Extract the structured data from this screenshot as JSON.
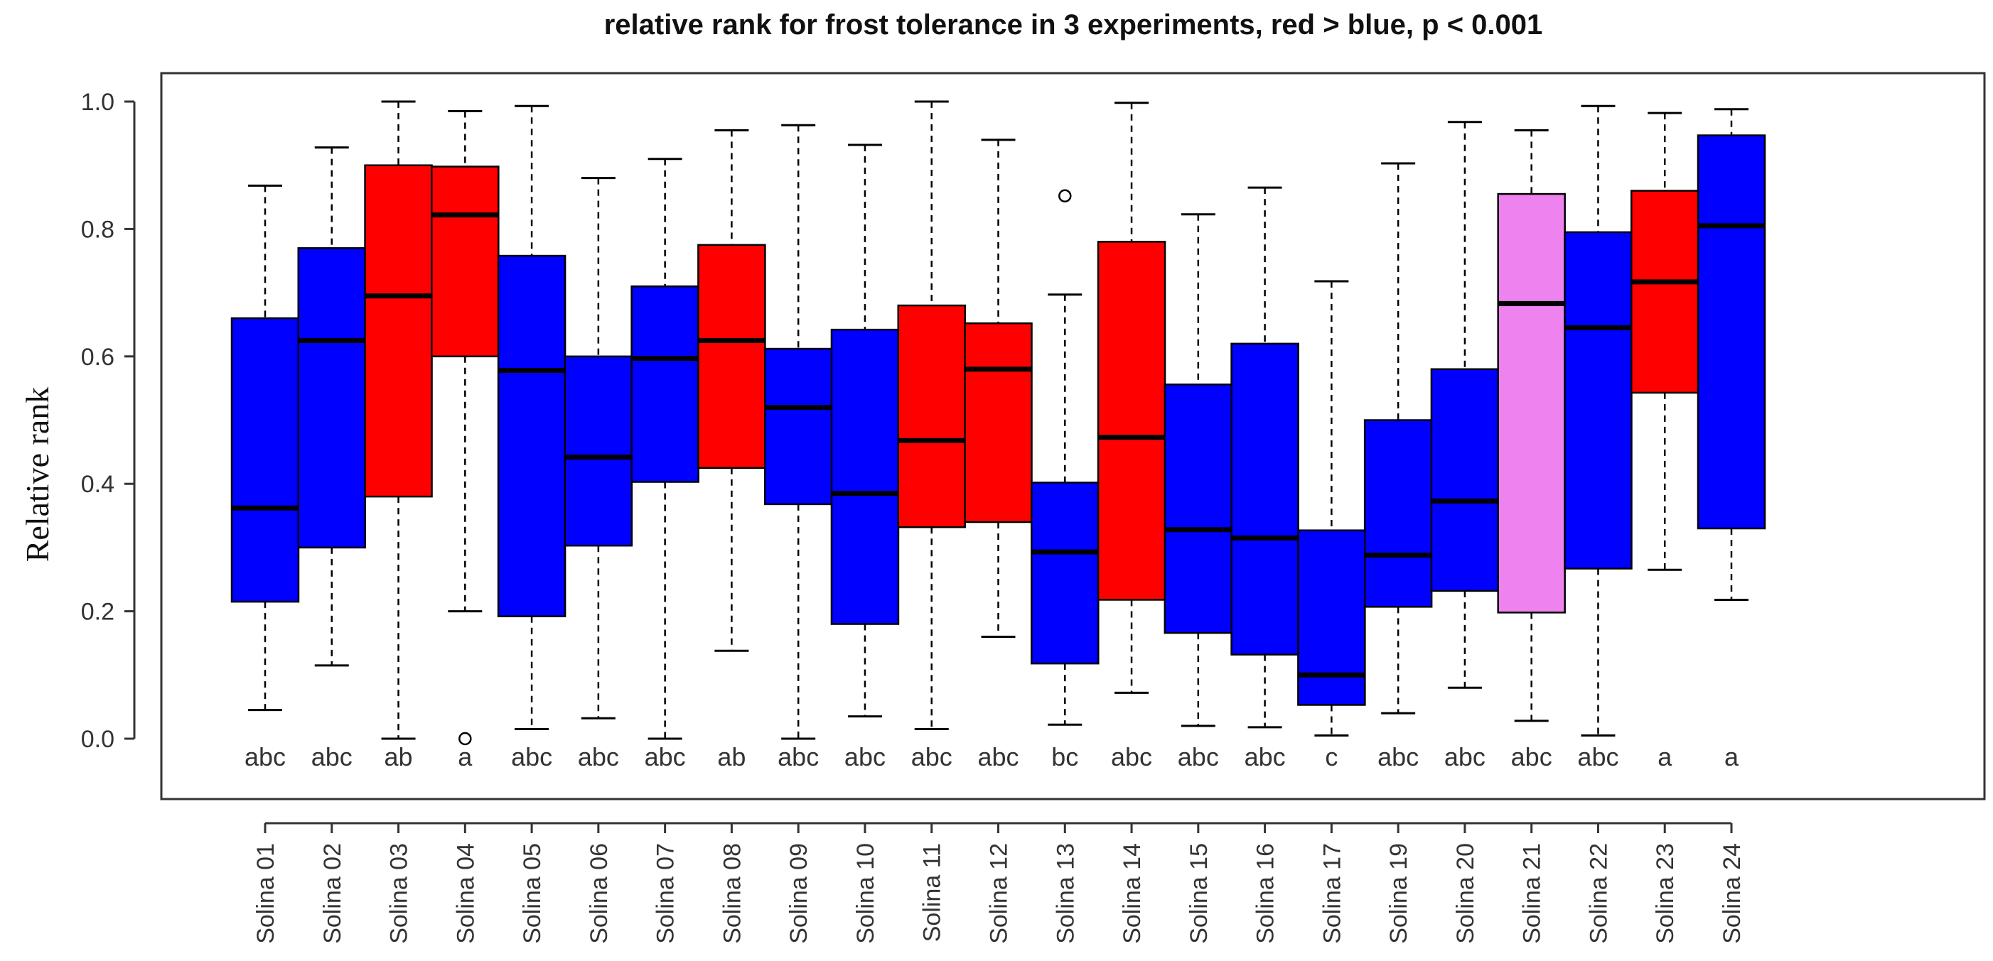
{
  "chart_data": {
    "type": "boxplot",
    "title": "relative rank for frost tolerance in 3 experiments, red > blue, p < 0.001",
    "xlabel": "",
    "ylabel": "Relative rank",
    "ylim": [
      -0.1,
      1.03
    ],
    "yticks": [
      0.0,
      0.2,
      0.4,
      0.6,
      0.8,
      1.0
    ],
    "ytick_labels": [
      "0.0",
      "0.2",
      "0.4",
      "0.6",
      "0.8",
      "1.0"
    ],
    "grid": false,
    "colors": {
      "red": "#ff0000",
      "blue": "#0000ff",
      "violet": "#ee82ee",
      "outline": "#000000"
    },
    "categories": [
      {
        "label": "Solina 01",
        "group": "abc",
        "color": "#0000ff",
        "whisker_low": 0.045,
        "q1": 0.215,
        "median": 0.362,
        "q3": 0.66,
        "whisker_high": 0.868,
        "outliers": []
      },
      {
        "label": "Solina 02",
        "group": "abc",
        "color": "#0000ff",
        "whisker_low": 0.115,
        "q1": 0.3,
        "median": 0.625,
        "q3": 0.77,
        "whisker_high": 0.928,
        "outliers": []
      },
      {
        "label": "Solina 03",
        "group": "ab",
        "color": "#ff0000",
        "whisker_low": 0.0,
        "q1": 0.38,
        "median": 0.695,
        "q3": 0.9,
        "whisker_high": 1.0,
        "outliers": []
      },
      {
        "label": "Solina 04",
        "group": "a",
        "color": "#ff0000",
        "whisker_low": 0.2,
        "q1": 0.6,
        "median": 0.822,
        "q3": 0.898,
        "whisker_high": 0.985,
        "outliers": [
          0.0
        ]
      },
      {
        "label": "Solina 05",
        "group": "abc",
        "color": "#0000ff",
        "whisker_low": 0.015,
        "q1": 0.192,
        "median": 0.578,
        "q3": 0.758,
        "whisker_high": 0.993,
        "outliers": []
      },
      {
        "label": "Solina 06",
        "group": "abc",
        "color": "#0000ff",
        "whisker_low": 0.032,
        "q1": 0.303,
        "median": 0.442,
        "q3": 0.6,
        "whisker_high": 0.88,
        "outliers": []
      },
      {
        "label": "Solina 07",
        "group": "abc",
        "color": "#0000ff",
        "whisker_low": 0.0,
        "q1": 0.403,
        "median": 0.597,
        "q3": 0.71,
        "whisker_high": 0.91,
        "outliers": []
      },
      {
        "label": "Solina 08",
        "group": "ab",
        "color": "#ff0000",
        "whisker_low": 0.138,
        "q1": 0.425,
        "median": 0.625,
        "q3": 0.775,
        "whisker_high": 0.955,
        "outliers": []
      },
      {
        "label": "Solina 09",
        "group": "abc",
        "color": "#0000ff",
        "whisker_low": 0.0,
        "q1": 0.368,
        "median": 0.52,
        "q3": 0.612,
        "whisker_high": 0.963,
        "outliers": []
      },
      {
        "label": "Solina 10",
        "group": "abc",
        "color": "#0000ff",
        "whisker_low": 0.035,
        "q1": 0.18,
        "median": 0.385,
        "q3": 0.642,
        "whisker_high": 0.932,
        "outliers": []
      },
      {
        "label": "Solina 11",
        "group": "abc",
        "color": "#ff0000",
        "whisker_low": 0.015,
        "q1": 0.332,
        "median": 0.468,
        "q3": 0.68,
        "whisker_high": 1.0,
        "outliers": []
      },
      {
        "label": "Solina 12",
        "group": "abc",
        "color": "#ff0000",
        "whisker_low": 0.16,
        "q1": 0.34,
        "median": 0.58,
        "q3": 0.652,
        "whisker_high": 0.94,
        "outliers": []
      },
      {
        "label": "Solina 13",
        "group": "bc",
        "color": "#0000ff",
        "whisker_low": 0.022,
        "q1": 0.118,
        "median": 0.293,
        "q3": 0.402,
        "whisker_high": 0.697,
        "outliers": [
          0.852
        ]
      },
      {
        "label": "Solina 14",
        "group": "abc",
        "color": "#ff0000",
        "whisker_low": 0.072,
        "q1": 0.218,
        "median": 0.473,
        "q3": 0.78,
        "whisker_high": 0.998,
        "outliers": []
      },
      {
        "label": "Solina 15",
        "group": "abc",
        "color": "#0000ff",
        "whisker_low": 0.02,
        "q1": 0.166,
        "median": 0.328,
        "q3": 0.556,
        "whisker_high": 0.823,
        "outliers": []
      },
      {
        "label": "Solina 16",
        "group": "abc",
        "color": "#0000ff",
        "whisker_low": 0.018,
        "q1": 0.132,
        "median": 0.315,
        "q3": 0.62,
        "whisker_high": 0.865,
        "outliers": []
      },
      {
        "label": "Solina 17",
        "group": "c",
        "color": "#0000ff",
        "whisker_low": 0.005,
        "q1": 0.053,
        "median": 0.1,
        "q3": 0.327,
        "whisker_high": 0.718,
        "outliers": []
      },
      {
        "label": "Solina 19",
        "group": "abc",
        "color": "#0000ff",
        "whisker_low": 0.04,
        "q1": 0.207,
        "median": 0.288,
        "q3": 0.5,
        "whisker_high": 0.903,
        "outliers": []
      },
      {
        "label": "Solina 20",
        "group": "abc",
        "color": "#0000ff",
        "whisker_low": 0.08,
        "q1": 0.232,
        "median": 0.373,
        "q3": 0.58,
        "whisker_high": 0.968,
        "outliers": []
      },
      {
        "label": "Solina 21",
        "group": "abc",
        "color": "#ee82ee",
        "whisker_low": 0.028,
        "q1": 0.198,
        "median": 0.683,
        "q3": 0.855,
        "whisker_high": 0.955,
        "outliers": []
      },
      {
        "label": "Solina 22",
        "group": "abc",
        "color": "#0000ff",
        "whisker_low": 0.005,
        "q1": 0.267,
        "median": 0.645,
        "q3": 0.795,
        "whisker_high": 0.993,
        "outliers": []
      },
      {
        "label": "Solina 23",
        "group": "a",
        "color": "#ff0000",
        "whisker_low": 0.265,
        "q1": 0.543,
        "median": 0.717,
        "q3": 0.86,
        "whisker_high": 0.982,
        "outliers": []
      },
      {
        "label": "Solina 24",
        "group": "a",
        "color": "#0000ff",
        "whisker_low": 0.218,
        "q1": 0.33,
        "median": 0.805,
        "q3": 0.947,
        "whisker_high": 0.988,
        "outliers": []
      }
    ]
  }
}
